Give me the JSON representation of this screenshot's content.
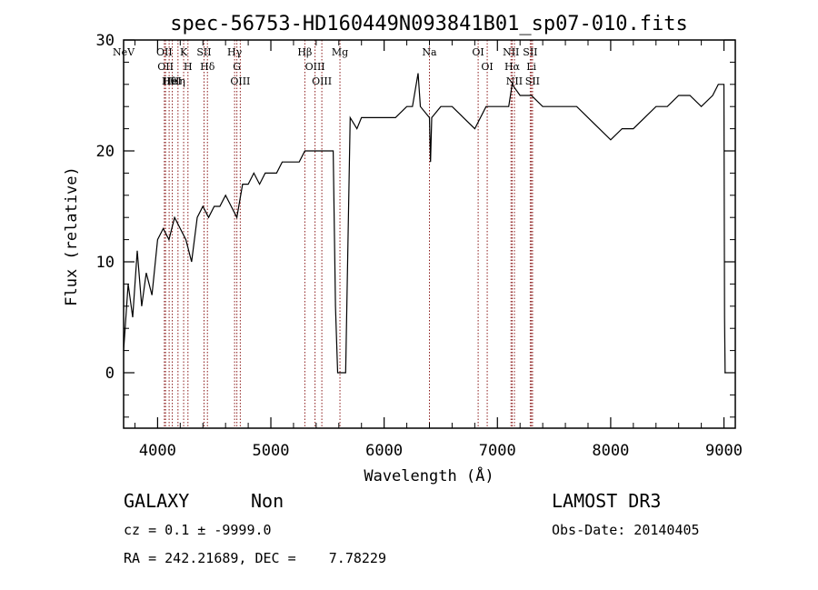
{
  "chart_data": {
    "type": "line",
    "title": "spec-56753-HD160449N093841B01_sp07-010.fits",
    "xlabel": "Wavelength (Å)",
    "ylabel": "Flux (relative)",
    "xlim": [
      3700,
      9100
    ],
    "ylim": [
      -5,
      30
    ],
    "xticks": [
      4000,
      5000,
      6000,
      7000,
      8000,
      9000
    ],
    "yticks": [
      0,
      10,
      20,
      30
    ],
    "grid": false,
    "colors": {
      "spectrum": "#000000",
      "lines": "#8b1a1a"
    },
    "series": [
      {
        "x": [
          3700,
          3740,
          3780,
          3820,
          3860,
          3900,
          3950,
          4000,
          4050,
          4100,
          4150,
          4200,
          4250,
          4300,
          4350,
          4400,
          4450,
          4500,
          4550,
          4600,
          4650,
          4700,
          4750,
          4800,
          4850,
          4900,
          4950,
          5000,
          5050,
          5100,
          5150,
          5200,
          5250,
          5300,
          5350,
          5400,
          5450,
          5500,
          5550,
          5570,
          5590,
          5610,
          5640,
          5660,
          5700,
          5760,
          5800,
          5900,
          6000,
          6100,
          6200,
          6250,
          6300,
          6320,
          6400,
          6410,
          6420,
          6500,
          6600,
          6700,
          6800,
          6850,
          6900,
          7000,
          7100,
          7130,
          7200,
          7300,
          7400,
          7500,
          7600,
          7700,
          7800,
          7900,
          8000,
          8100,
          8200,
          8300,
          8400,
          8500,
          8600,
          8700,
          8800,
          8900,
          8950,
          9000,
          9005,
          9010
        ],
        "y": [
          2,
          8,
          5,
          11,
          6,
          9,
          7,
          12,
          13,
          12,
          14,
          13,
          12,
          10,
          14,
          15,
          14,
          15,
          15,
          16,
          15,
          14,
          17,
          17,
          18,
          17,
          18,
          18,
          18,
          19,
          19,
          19,
          19,
          20,
          20,
          20,
          20,
          20,
          20,
          6,
          0,
          0,
          0,
          0,
          23,
          22,
          23,
          23,
          23,
          23,
          24,
          24,
          27,
          24,
          23,
          19,
          23,
          24,
          24,
          23,
          22,
          23,
          24,
          24,
          24,
          26,
          25,
          25,
          24,
          24,
          24,
          24,
          23,
          22,
          21,
          22,
          22,
          23,
          24,
          24,
          25,
          25,
          24,
          25,
          26,
          26,
          5,
          0
        ]
      }
    ],
    "emission_lines": [
      {
        "label": "NeV",
        "x": 3700
      },
      {
        "label": "OII",
        "x": 4060
      },
      {
        "label": "OII",
        "x": 4070
      },
      {
        "label": "Hθ",
        "x": 4102
      },
      {
        "label": "HeI",
        "x": 4130
      },
      {
        "label": "Hη",
        "x": 4180
      },
      {
        "label": "K",
        "x": 4230
      },
      {
        "label": "H",
        "x": 4268
      },
      {
        "label": "SII",
        "x": 4410
      },
      {
        "label": "Hδ",
        "x": 4440
      },
      {
        "label": "Hγ",
        "x": 4680
      },
      {
        "label": "G",
        "x": 4700
      },
      {
        "label": "OIII",
        "x": 4730
      },
      {
        "label": "Hβ",
        "x": 5300
      },
      {
        "label": "OIII",
        "x": 5390
      },
      {
        "label": "OIII",
        "x": 5450
      },
      {
        "label": "Mg",
        "x": 5610
      },
      {
        "label": "Na",
        "x": 6400
      },
      {
        "label": "OI",
        "x": 6830
      },
      {
        "label": "OI",
        "x": 6910
      },
      {
        "label": "NII",
        "x": 7120
      },
      {
        "label": "Hα",
        "x": 7130
      },
      {
        "label": "NII",
        "x": 7150
      },
      {
        "label": "SII",
        "x": 7290
      },
      {
        "label": "Li",
        "x": 7300
      },
      {
        "label": "SII",
        "x": 7310
      }
    ]
  },
  "info": {
    "class": "GALAXY",
    "subclass": "Non",
    "survey": "LAMOST DR3",
    "cz": "cz = 0.1 ± -9999.0",
    "obsdate": "Obs-Date: 20140405",
    "radec": "RA = 242.21689, DEC =    7.78229"
  }
}
